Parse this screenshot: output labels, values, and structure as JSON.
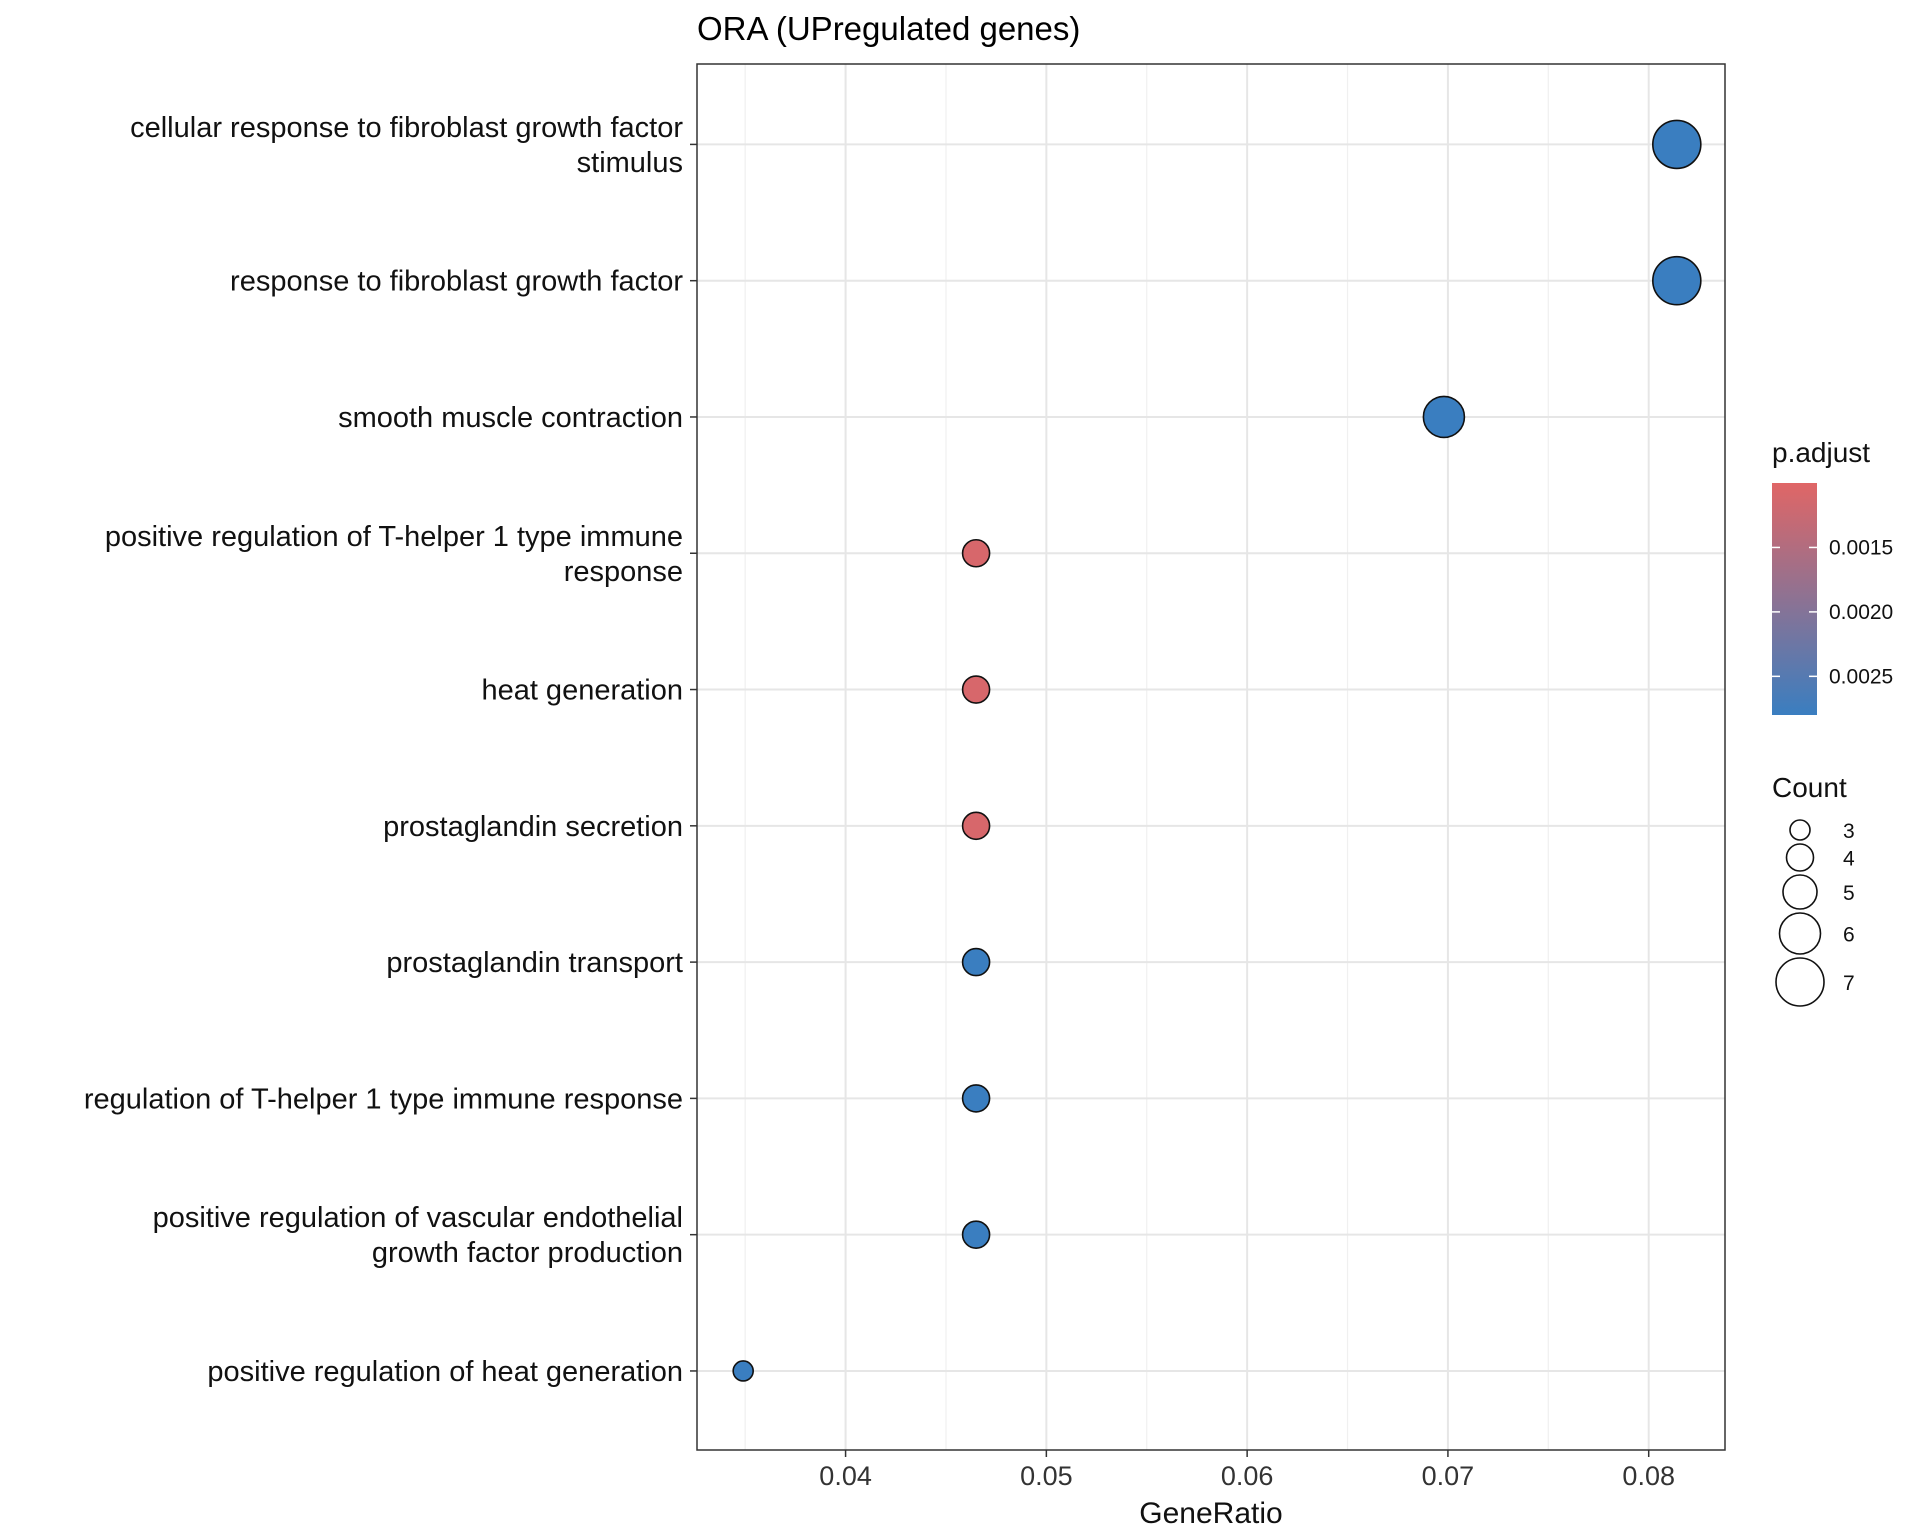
{
  "chart_data": {
    "type": "scatter",
    "title": "ORA (UPregulated genes)",
    "xlabel": "GeneRatio",
    "ylabel": "",
    "xlim": [
      0.0326,
      0.0838
    ],
    "xticks": [
      "0.04",
      "0.05",
      "0.06",
      "0.07",
      "0.08"
    ],
    "grid": true,
    "categories": [
      [
        "cellular response to fibroblast growth factor",
        "stimulus"
      ],
      [
        "response to fibroblast growth factor"
      ],
      [
        "smooth muscle contraction"
      ],
      [
        "positive regulation of T-helper 1 type immune",
        "response"
      ],
      [
        "heat generation"
      ],
      [
        "prostaglandin secretion"
      ],
      [
        "prostaglandin transport"
      ],
      [
        "regulation of T-helper 1 type immune response"
      ],
      [
        "positive regulation of vascular endothelial",
        "growth factor production"
      ],
      [
        "positive regulation of heat generation"
      ]
    ],
    "points": [
      {
        "gene_ratio": 0.0814,
        "count": 7,
        "p_adjust": 0.0028
      },
      {
        "gene_ratio": 0.0814,
        "count": 7,
        "p_adjust": 0.0028
      },
      {
        "gene_ratio": 0.0698,
        "count": 6,
        "p_adjust": 0.0028
      },
      {
        "gene_ratio": 0.0465,
        "count": 4,
        "p_adjust": 0.0011
      },
      {
        "gene_ratio": 0.0465,
        "count": 4,
        "p_adjust": 0.0011
      },
      {
        "gene_ratio": 0.0465,
        "count": 4,
        "p_adjust": 0.0011
      },
      {
        "gene_ratio": 0.0465,
        "count": 4,
        "p_adjust": 0.0028
      },
      {
        "gene_ratio": 0.0465,
        "count": 4,
        "p_adjust": 0.0028
      },
      {
        "gene_ratio": 0.0465,
        "count": 4,
        "p_adjust": 0.0028
      },
      {
        "gene_ratio": 0.0349,
        "count": 3,
        "p_adjust": 0.0028
      }
    ],
    "color_legend": {
      "title": "p.adjust",
      "ticks": [
        0.0015,
        0.002,
        0.0025
      ],
      "tick_labels": [
        "0.0015",
        "0.0020",
        "0.0025"
      ],
      "range": [
        0.001,
        0.0028
      ],
      "low_color": "#E06666",
      "high_color": "#3A7EC0"
    },
    "size_legend": {
      "title": "Count",
      "values": [
        3,
        4,
        5,
        6,
        7
      ],
      "labels": [
        "3",
        "4",
        "5",
        "6",
        "7"
      ]
    }
  }
}
